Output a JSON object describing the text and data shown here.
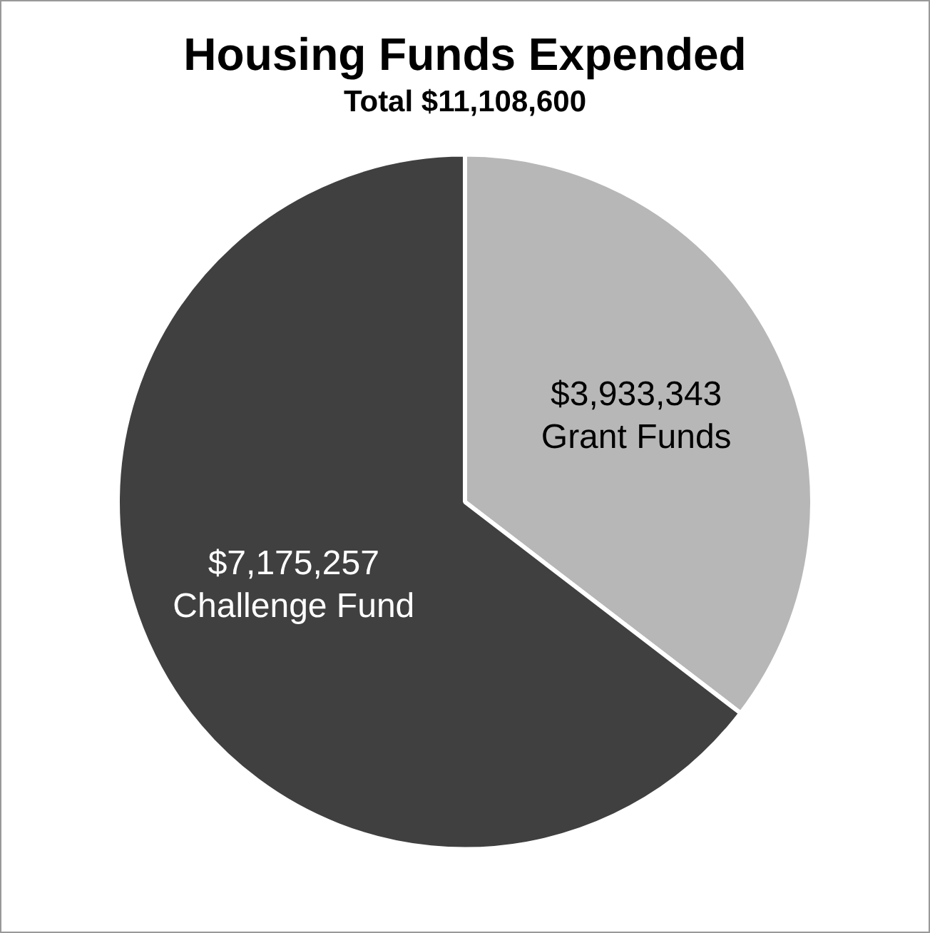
{
  "chart_data": {
    "type": "pie",
    "title": "Housing Funds Expended",
    "subtitle": "Total $11,108,600",
    "categories": [
      "Grant Funds",
      "Challenge Fund"
    ],
    "values": [
      3933343,
      7175257
    ],
    "colors": [
      "#b7b7b7",
      "#404040"
    ],
    "value_labels": [
      "$3,933,343",
      "$7,175,257"
    ],
    "legend": false
  }
}
